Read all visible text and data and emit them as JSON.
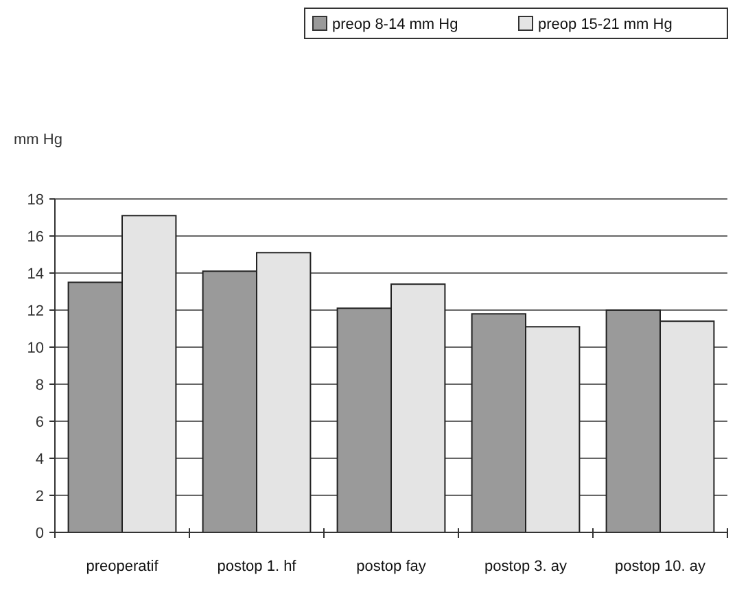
{
  "chart_data": {
    "type": "bar",
    "ylabel": "mm Hg",
    "categories": [
      "preoperatif",
      "postop 1. hf",
      "postop fay",
      "postop 3. ay",
      "postop 10. ay"
    ],
    "series": [
      {
        "name": "preop 8-14 mm Hg",
        "color": "#9a9a9a",
        "values": [
          13.5,
          14.1,
          12.1,
          11.8,
          12.0
        ]
      },
      {
        "name": "preop 15-21 mm Hg",
        "color": "#e4e4e4",
        "values": [
          17.1,
          15.1,
          13.4,
          11.1,
          11.4
        ]
      }
    ],
    "ylim": [
      0,
      18
    ],
    "yticks": [
      0,
      2,
      4,
      6,
      8,
      10,
      12,
      14,
      16,
      18
    ],
    "grid": "y",
    "legend": "top right"
  }
}
